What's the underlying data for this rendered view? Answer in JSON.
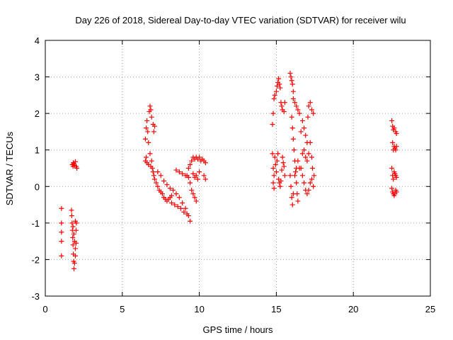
{
  "chart_data": {
    "type": "scatter",
    "title": "Day 226 of 2018, Sidereal Day-to-day VTEC variation (SDTVAR) for receiver wilu",
    "xlabel": "GPS time / hours",
    "ylabel": "SDTVAR / TECUs",
    "xlim": [
      0,
      25
    ],
    "ylim": [
      -3,
      4
    ],
    "xticks": [
      0,
      5,
      10,
      15,
      20,
      25
    ],
    "xtick_labels": [
      "0",
      "5",
      "10",
      "15",
      "20",
      "25"
    ],
    "yticks": [
      -3,
      -2,
      -1,
      0,
      1,
      2,
      3,
      4
    ],
    "ytick_labels": [
      "-3",
      "-2",
      "-1",
      "0",
      "1",
      "2",
      "3",
      "4"
    ],
    "grid": true,
    "marker": "+",
    "series": [
      {
        "name": "SDTVAR",
        "color": "#ff0000",
        "points": [
          [
            1.05,
            -0.6
          ],
          [
            1.05,
            -1.0
          ],
          [
            1.05,
            -1.25
          ],
          [
            1.05,
            -1.5
          ],
          [
            1.05,
            -1.9
          ],
          [
            1.7,
            -0.65
          ],
          [
            1.72,
            -0.8
          ],
          [
            1.74,
            -1.0
          ],
          [
            1.76,
            -1.2
          ],
          [
            1.78,
            -1.4
          ],
          [
            1.8,
            -1.6
          ],
          [
            1.82,
            -1.85
          ],
          [
            1.84,
            -2.05
          ],
          [
            1.86,
            -2.25
          ],
          [
            1.8,
            -1.1
          ],
          [
            1.85,
            -1.3
          ],
          [
            1.9,
            -1.5
          ],
          [
            1.95,
            -1.7
          ],
          [
            1.9,
            -2.1
          ],
          [
            1.95,
            -1.9
          ],
          [
            2.0,
            -1.55
          ],
          [
            2.0,
            -1.2
          ],
          [
            2.02,
            -1.0
          ],
          [
            1.95,
            -0.95
          ],
          [
            1.75,
            0.6
          ],
          [
            1.8,
            0.55
          ],
          [
            1.85,
            0.62
          ],
          [
            1.9,
            0.58
          ],
          [
            1.95,
            0.68
          ],
          [
            2.0,
            0.55
          ],
          [
            2.05,
            0.5
          ],
          [
            1.82,
            0.65
          ],
          [
            6.5,
            0.7
          ],
          [
            6.55,
            0.8
          ],
          [
            6.5,
            1.3
          ],
          [
            6.55,
            1.6
          ],
          [
            6.6,
            1.8
          ],
          [
            6.65,
            1.5
          ],
          [
            6.7,
            1.2
          ],
          [
            6.75,
            2.05
          ],
          [
            6.8,
            2.2
          ],
          [
            6.85,
            2.1
          ],
          [
            6.9,
            1.9
          ],
          [
            7.0,
            1.7
          ],
          [
            7.05,
            1.5
          ],
          [
            7.1,
            1.65
          ],
          [
            6.6,
            0.65
          ],
          [
            6.7,
            0.6
          ],
          [
            6.8,
            0.9
          ],
          [
            6.85,
            0.55
          ],
          [
            6.9,
            0.7
          ],
          [
            6.95,
            0.5
          ],
          [
            7.0,
            0.4
          ],
          [
            7.05,
            0.3
          ],
          [
            7.1,
            0.2
          ],
          [
            7.2,
            0.1
          ],
          [
            7.3,
            0.0
          ],
          [
            7.4,
            -0.1
          ],
          [
            7.5,
            -0.15
          ],
          [
            7.6,
            -0.2
          ],
          [
            7.7,
            -0.3
          ],
          [
            7.8,
            -0.35
          ],
          [
            7.9,
            -0.4
          ],
          [
            8.0,
            -0.35
          ],
          [
            8.1,
            -0.3
          ],
          [
            8.2,
            -0.25
          ],
          [
            7.3,
            0.4
          ],
          [
            7.5,
            0.3
          ],
          [
            7.7,
            0.15
          ],
          [
            7.9,
            0.05
          ],
          [
            8.1,
            -0.05
          ],
          [
            8.3,
            -0.1
          ],
          [
            8.5,
            -0.2
          ],
          [
            8.7,
            -0.3
          ],
          [
            8.9,
            -0.45
          ],
          [
            9.1,
            -0.6
          ],
          [
            9.3,
            -0.8
          ],
          [
            9.4,
            -0.95
          ],
          [
            8.2,
            -0.45
          ],
          [
            8.4,
            -0.5
          ],
          [
            8.6,
            -0.55
          ],
          [
            8.8,
            -0.6
          ],
          [
            9.0,
            -0.7
          ],
          [
            9.2,
            -0.75
          ],
          [
            8.5,
            0.45
          ],
          [
            8.7,
            0.4
          ],
          [
            8.9,
            0.35
          ],
          [
            9.1,
            0.3
          ],
          [
            9.3,
            0.25
          ],
          [
            9.4,
            0.1
          ],
          [
            9.5,
            -0.1
          ],
          [
            9.6,
            -0.2
          ],
          [
            9.7,
            -0.3
          ],
          [
            9.8,
            -0.4
          ],
          [
            9.2,
            0.3
          ],
          [
            9.3,
            0.5
          ],
          [
            9.4,
            0.6
          ],
          [
            9.5,
            0.7
          ],
          [
            9.6,
            0.8
          ],
          [
            9.7,
            0.75
          ],
          [
            9.8,
            0.8
          ],
          [
            9.9,
            0.75
          ],
          [
            10.0,
            0.8
          ],
          [
            10.1,
            0.7
          ],
          [
            10.2,
            0.75
          ],
          [
            10.3,
            0.7
          ],
          [
            10.4,
            0.65
          ],
          [
            9.6,
            0.35
          ],
          [
            9.7,
            0.25
          ],
          [
            9.8,
            0.3
          ],
          [
            9.9,
            0.2
          ],
          [
            10.0,
            0.4
          ],
          [
            10.3,
            0.3
          ],
          [
            10.4,
            0.2
          ],
          [
            14.75,
            1.7
          ],
          [
            14.8,
            2.0
          ],
          [
            14.85,
            2.4
          ],
          [
            14.9,
            2.5
          ],
          [
            15.0,
            2.6
          ],
          [
            15.05,
            2.75
          ],
          [
            15.1,
            2.85
          ],
          [
            15.15,
            2.95
          ],
          [
            15.2,
            2.8
          ],
          [
            15.25,
            2.7
          ],
          [
            15.3,
            2.3
          ],
          [
            15.35,
            2.2
          ],
          [
            15.4,
            2.1
          ],
          [
            15.5,
            2.05
          ],
          [
            15.55,
            2.3
          ],
          [
            14.8,
            0.5
          ],
          [
            14.85,
            0.3
          ],
          [
            14.9,
            0.8
          ],
          [
            14.95,
            0.6
          ],
          [
            15.0,
            0.4
          ],
          [
            15.05,
            0.7
          ],
          [
            15.1,
            0.9
          ],
          [
            15.15,
            0.2
          ],
          [
            15.2,
            0.1
          ],
          [
            15.25,
            0.0
          ],
          [
            15.3,
            0.15
          ],
          [
            15.35,
            0.45
          ],
          [
            15.4,
            0.8
          ],
          [
            15.45,
            0.65
          ],
          [
            15.5,
            0.55
          ],
          [
            15.55,
            0.3
          ],
          [
            14.75,
            0.9
          ],
          [
            14.8,
            0.1
          ],
          [
            14.85,
            -0.05
          ],
          [
            15.9,
            3.1
          ],
          [
            15.95,
            3.0
          ],
          [
            16.0,
            2.9
          ],
          [
            16.05,
            2.8
          ],
          [
            16.1,
            2.6
          ],
          [
            16.1,
            2.4
          ],
          [
            16.2,
            2.3
          ],
          [
            16.3,
            2.2
          ],
          [
            16.4,
            2.1
          ],
          [
            16.5,
            2.0
          ],
          [
            16.0,
            1.9
          ],
          [
            16.05,
            1.6
          ],
          [
            16.1,
            1.3
          ],
          [
            16.15,
            1.0
          ],
          [
            16.2,
            0.7
          ],
          [
            16.25,
            0.4
          ],
          [
            16.3,
            0.1
          ],
          [
            16.35,
            -0.2
          ],
          [
            16.4,
            -0.4
          ],
          [
            15.9,
            0.3
          ],
          [
            15.95,
            0.0
          ],
          [
            16.0,
            -0.3
          ],
          [
            16.05,
            -0.5
          ],
          [
            16.1,
            -0.2
          ],
          [
            16.2,
            0.3
          ],
          [
            16.3,
            0.5
          ],
          [
            16.4,
            0.7
          ],
          [
            16.5,
            0.5
          ],
          [
            16.6,
            1.5
          ],
          [
            16.7,
            1.8
          ],
          [
            16.8,
            1.6
          ],
          [
            16.9,
            1.4
          ],
          [
            17.0,
            1.2
          ],
          [
            17.05,
            1.9
          ],
          [
            17.1,
            2.2
          ],
          [
            17.2,
            2.3
          ],
          [
            17.3,
            2.1
          ],
          [
            17.4,
            2.0
          ],
          [
            16.6,
            0.5
          ],
          [
            16.7,
            0.3
          ],
          [
            16.8,
            0.1
          ],
          [
            16.9,
            -0.1
          ],
          [
            17.0,
            -0.2
          ],
          [
            17.1,
            -0.1
          ],
          [
            17.2,
            0.1
          ],
          [
            17.3,
            0.2
          ],
          [
            17.4,
            0.0
          ],
          [
            17.45,
            0.3
          ],
          [
            16.7,
            0.9
          ],
          [
            16.8,
            1.0
          ],
          [
            16.9,
            0.8
          ],
          [
            17.0,
            0.7
          ],
          [
            17.1,
            0.9
          ],
          [
            17.2,
            1.2
          ],
          [
            17.3,
            0.8
          ],
          [
            17.35,
            0.5
          ],
          [
            22.5,
            1.8
          ],
          [
            22.55,
            1.65
          ],
          [
            22.6,
            1.55
          ],
          [
            22.65,
            1.6
          ],
          [
            22.75,
            1.5
          ],
          [
            22.8,
            1.45
          ],
          [
            22.55,
            1.2
          ],
          [
            22.6,
            1.0
          ],
          [
            22.65,
            1.1
          ],
          [
            22.7,
            1.05
          ],
          [
            22.75,
            1.0
          ],
          [
            22.8,
            1.1
          ],
          [
            22.5,
            0.5
          ],
          [
            22.55,
            0.3
          ],
          [
            22.6,
            0.2
          ],
          [
            22.65,
            0.4
          ],
          [
            22.7,
            0.35
          ],
          [
            22.75,
            0.3
          ],
          [
            22.8,
            0.25
          ],
          [
            22.5,
            -0.05
          ],
          [
            22.55,
            -0.15
          ],
          [
            22.6,
            -0.2
          ],
          [
            22.65,
            -0.25
          ],
          [
            22.7,
            -0.2
          ],
          [
            22.75,
            -0.1
          ],
          [
            22.8,
            -0.15
          ]
        ]
      }
    ]
  }
}
